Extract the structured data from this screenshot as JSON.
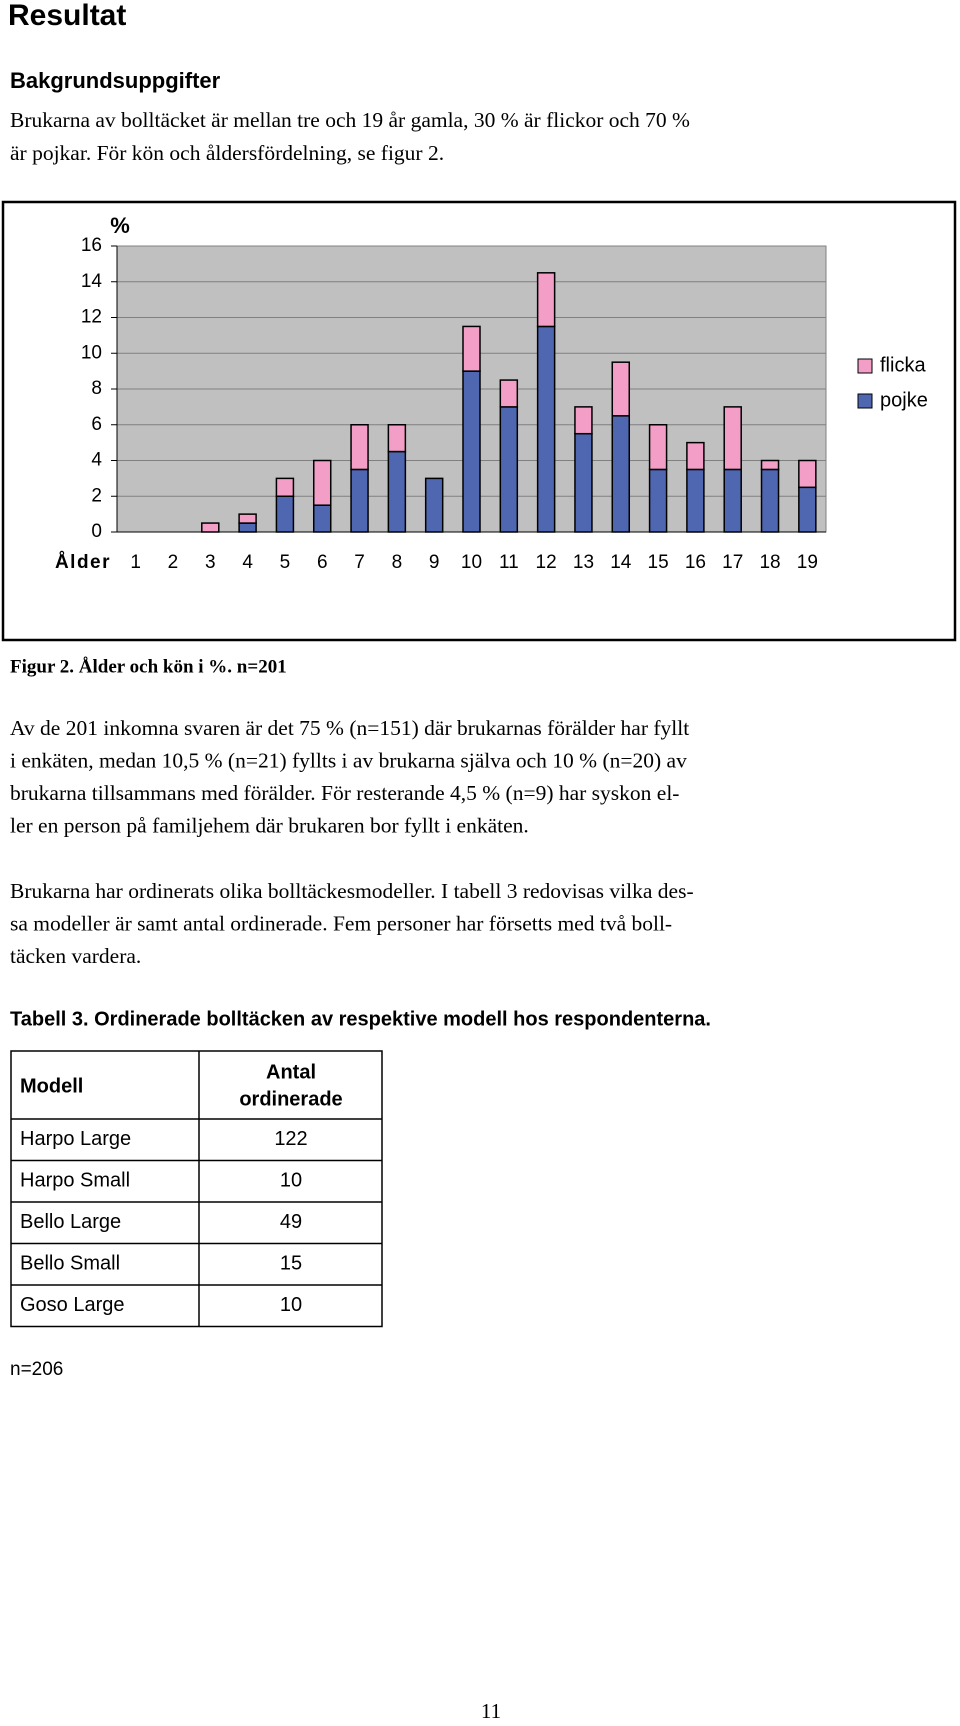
{
  "header": {
    "title": "Resultat",
    "subtitle": "Bakgrundsuppgifter"
  },
  "intro": [
    "Brukarna av bolltäcket är mellan tre och 19 år gamla, 30 % är flickor och 70 %",
    "är pojkar. För kön och åldersfördelning, se figur 2."
  ],
  "chart_data": {
    "type": "bar",
    "stacked": true,
    "y_label": "%",
    "x_label": "Ålder",
    "categories": [
      "1",
      "2",
      "3",
      "4",
      "5",
      "6",
      "7",
      "8",
      "9",
      "10",
      "11",
      "12",
      "13",
      "14",
      "15",
      "16",
      "17",
      "18",
      "19"
    ],
    "series": [
      {
        "name": "pojke",
        "color": "#4f66b0",
        "values": [
          0,
          0,
          0,
          0.5,
          2,
          1.5,
          3.5,
          4.5,
          3,
          9,
          7,
          11.5,
          5.5,
          6.5,
          3.5,
          3.5,
          3.5,
          3.5,
          2.5
        ]
      },
      {
        "name": "flicka",
        "color": "#f29ec6",
        "values": [
          0,
          0,
          0.5,
          0.5,
          1,
          2.5,
          2.5,
          1.5,
          0,
          2.5,
          1.5,
          3,
          1.5,
          3,
          2.5,
          1.5,
          3.5,
          0.5,
          1.5
        ]
      }
    ],
    "ylim": [
      0,
      16
    ],
    "yticks": [
      0,
      2,
      4,
      6,
      8,
      10,
      12,
      14,
      16
    ],
    "grid": true,
    "legend": "right"
  },
  "figure_caption": "Figur 2. Ålder och kön i %. n=201",
  "paragraphs": [
    [
      "Av de 201 inkomna svaren är det 75 % (n=151) där brukarnas förälder har fyllt",
      "i enkäten, medan 10,5 % (n=21) fyllts i av brukarna själva och 10 % (n=20) av",
      "brukarna tillsammans med förälder. För resterande 4,5 % (n=9) har syskon el-",
      "ler en person på familjehem där brukaren bor fyllt i enkäten."
    ],
    [
      "Brukarna har ordinerats olika bolltäckesmodeller. I tabell 3 redovisas vilka des-",
      "sa modeller är samt antal ordinerade. Fem personer har försetts med två boll-",
      "täcken vardera."
    ]
  ],
  "table": {
    "caption": "Tabell 3. Ordinerade bolltäcken av respektive modell hos respondenterna.",
    "header": [
      "Modell",
      [
        "Antal",
        "ordinerade"
      ]
    ],
    "rows": [
      [
        "Harpo Large",
        "122"
      ],
      [
        "Harpo Small",
        "10"
      ],
      [
        "Bello Large",
        "49"
      ],
      [
        "Bello Small",
        "15"
      ],
      [
        "Goso Large",
        "10"
      ]
    ],
    "note": "n=206"
  },
  "page_number": "11"
}
